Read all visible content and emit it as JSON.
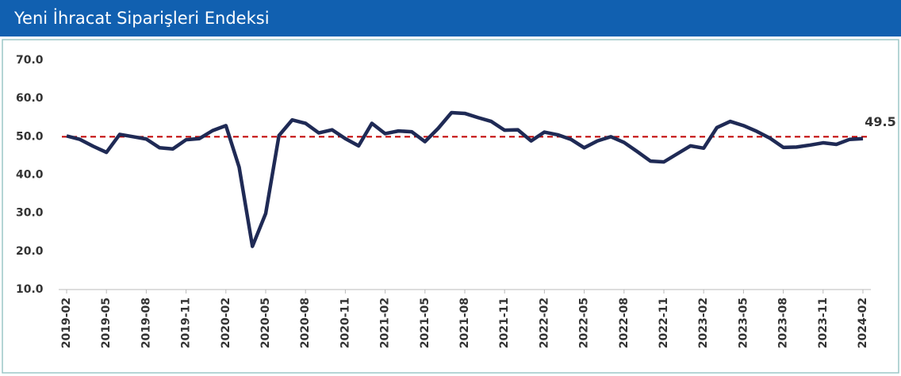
{
  "chart_data": {
    "type": "line",
    "title": "Yeni İhracat Siparişleri Endeksi",
    "categories": [
      "2019-02",
      null,
      null,
      "2019-05",
      null,
      null,
      "2019-08",
      null,
      null,
      "2019-11",
      null,
      null,
      "2020-02",
      null,
      null,
      "2020-05",
      null,
      null,
      "2020-08",
      null,
      null,
      "2020-11",
      null,
      null,
      "2021-02",
      null,
      null,
      "2021-05",
      null,
      null,
      "2021-08",
      null,
      null,
      "2021-11",
      null,
      null,
      "2022-02",
      null,
      null,
      "2022-05",
      null,
      null,
      "2022-08",
      null,
      null,
      "2022-11",
      null,
      null,
      "2023-02",
      null,
      null,
      "2023-05",
      null,
      null,
      "2023-08",
      null,
      null,
      "2023-11",
      null,
      null,
      "2024-02"
    ],
    "series": [
      {
        "color": "#1f2a55",
        "values": [
          50.2,
          49.3,
          47.5,
          45.9,
          50.6,
          50.0,
          49.4,
          47.1,
          46.8,
          49.2,
          49.5,
          51.6,
          52.9,
          42.0,
          21.3,
          29.9,
          50.3,
          54.4,
          53.5,
          51.0,
          51.8,
          49.5,
          47.6,
          53.5,
          50.8,
          51.5,
          51.3,
          48.7,
          52.2,
          56.3,
          56.1,
          55.0,
          54.0,
          51.7,
          51.8,
          48.9,
          51.2,
          50.5,
          49.3,
          47.1,
          48.9,
          50.0,
          48.5,
          46.1,
          43.6,
          43.4,
          45.5,
          47.6,
          47.0,
          52.4,
          54.0,
          52.9,
          51.4,
          49.6,
          47.2,
          47.3,
          47.8,
          48.4,
          48.0,
          49.3,
          49.5
        ]
      }
    ],
    "reference_line": {
      "value": 50,
      "color": "#c00000",
      "style": "dashed"
    },
    "ylim": [
      10,
      70
    ],
    "yticks": [
      {
        "value": 10,
        "label": "10.0"
      },
      {
        "value": 20,
        "label": "20.0"
      },
      {
        "value": 30,
        "label": "30.0"
      },
      {
        "value": 40,
        "label": "40.0"
      },
      {
        "value": 50,
        "label": "50.0"
      },
      {
        "value": 60,
        "label": "60.0"
      },
      {
        "value": 70,
        "label": "70.0"
      }
    ],
    "grid": false
  }
}
